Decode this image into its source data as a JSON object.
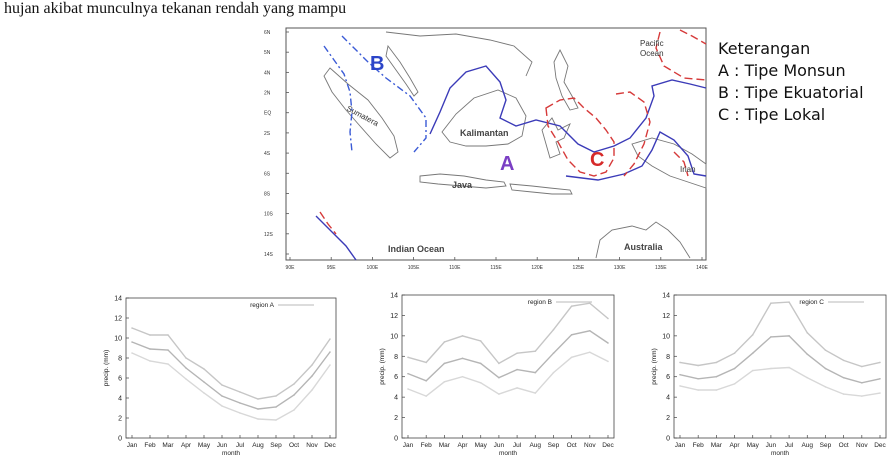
{
  "document": {
    "text_line": "hujan akibat munculnya tekanan rendah yang mampu"
  },
  "map": {
    "lat_ticks": [
      "6N",
      "5N",
      "4N",
      "2N",
      "EQ",
      "2S",
      "4S",
      "6S",
      "8S",
      "10S",
      "12S",
      "14S"
    ],
    "lon_ticks": [
      "90E",
      "95E",
      "100E",
      "105E",
      "110E",
      "115E",
      "120E",
      "125E",
      "130E",
      "135E",
      "140E"
    ],
    "place_labels": {
      "sumatera": "Sumatera",
      "kalimantan": "Kalimantan",
      "java": "Java",
      "indian_ocean": "Indian Ocean",
      "australia": "Australia",
      "pacific_ocean_1": "Pacific",
      "pacific_ocean_2": "Ocean",
      "irian": "Irian"
    },
    "region_letters": {
      "a": "A",
      "b": "B",
      "c": "C"
    },
    "colors": {
      "a": "#7b3fc4",
      "b": "#2c45c8",
      "c": "#d62a2a",
      "line_blue": "#3b3bb8",
      "line_red": "#d63a3a"
    }
  },
  "legend": {
    "title": "Keterangan",
    "items": [
      "A : Tipe Monsun",
      "B : Tipe Ekuatorial",
      "C : Tipe Lokal"
    ]
  },
  "chart_data": [
    {
      "type": "line",
      "title": "",
      "legend_label": "region A",
      "xlabel": "month",
      "ylabel": "precip. (mm)",
      "ylim": [
        0,
        14
      ],
      "yticks": [
        0,
        2,
        4,
        6,
        8,
        10,
        12,
        14
      ],
      "categories": [
        "Jan",
        "Feb",
        "Mar",
        "Apr",
        "May",
        "Jun",
        "Jul",
        "Aug",
        "Sep",
        "Oct",
        "Nov",
        "Dec"
      ],
      "series": [
        {
          "values": [
            11,
            10.3,
            10.3,
            8,
            6.9,
            5.3,
            4.6,
            3.9,
            4.2,
            5.4,
            7.3,
            9.9
          ]
        },
        {
          "values": [
            9.6,
            8.9,
            8.8,
            7,
            5.6,
            4.2,
            3.5,
            2.9,
            3.1,
            4.3,
            6.2,
            8.6
          ]
        },
        {
          "values": [
            8.5,
            7.7,
            7.4,
            5.9,
            4.5,
            3.2,
            2.5,
            1.9,
            1.8,
            2.8,
            4.8,
            7.3
          ]
        }
      ]
    },
    {
      "type": "line",
      "title": "",
      "legend_label": "region B",
      "xlabel": "month",
      "ylabel": "precip. (mm)",
      "ylim": [
        0,
        14
      ],
      "yticks": [
        0,
        2,
        4,
        6,
        8,
        10,
        12,
        14
      ],
      "categories": [
        "Jan",
        "Feb",
        "Mar",
        "Apr",
        "May",
        "Jun",
        "Jul",
        "Aug",
        "Sep",
        "Oct",
        "Nov",
        "Dec"
      ],
      "series": [
        {
          "values": [
            7.9,
            7.4,
            9.4,
            10,
            9.5,
            7.3,
            8.3,
            8.5,
            10.6,
            12.9,
            13.2,
            11.7
          ]
        },
        {
          "values": [
            6.3,
            5.6,
            7.3,
            7.8,
            7.3,
            5.9,
            6.7,
            6.4,
            8.3,
            10.1,
            10.5,
            9.3
          ]
        },
        {
          "values": [
            4.8,
            4.1,
            5.5,
            6,
            5.4,
            4.3,
            4.9,
            4.4,
            6.4,
            7.9,
            8.4,
            7.5
          ]
        }
      ]
    },
    {
      "type": "line",
      "title": "",
      "legend_label": "region C",
      "xlabel": "month",
      "ylabel": "precip. (mm)",
      "ylim": [
        0,
        14
      ],
      "yticks": [
        0,
        2,
        4,
        6,
        8,
        10,
        12,
        14
      ],
      "categories": [
        "Jan",
        "Feb",
        "Mar",
        "Apr",
        "May",
        "Jun",
        "Jul",
        "Aug",
        "Sep",
        "Oct",
        "Nov",
        "Dec"
      ],
      "series": [
        {
          "values": [
            7.4,
            7.1,
            7.4,
            8.3,
            10.1,
            13.2,
            13.3,
            10.3,
            8.6,
            7.6,
            7,
            7.4
          ]
        },
        {
          "values": [
            6.2,
            5.8,
            6,
            6.8,
            8.3,
            9.9,
            10,
            8.2,
            6.8,
            5.9,
            5.4,
            5.8
          ]
        },
        {
          "values": [
            5.1,
            4.7,
            4.7,
            5.3,
            6.6,
            6.8,
            6.9,
            5.9,
            5,
            4.3,
            4.1,
            4.4
          ]
        }
      ]
    }
  ]
}
